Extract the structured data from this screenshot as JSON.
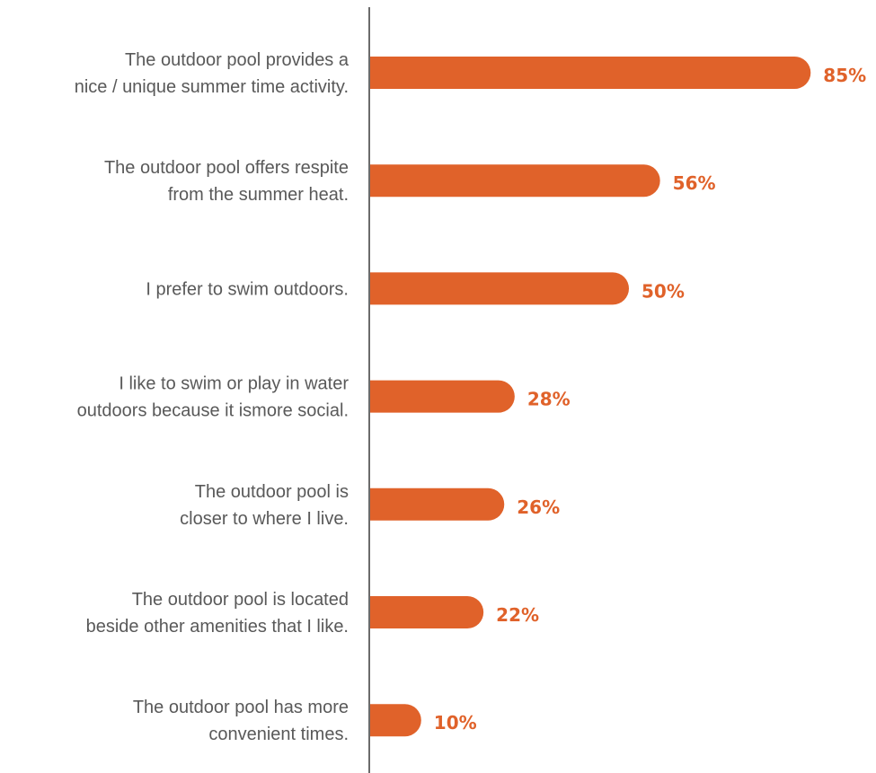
{
  "chart_data": {
    "type": "bar",
    "orientation": "horizontal",
    "categories": [
      [
        "The outdoor pool provides a",
        "nice / unique summer time activity."
      ],
      [
        "The outdoor pool offers respite",
        "from the summer heat."
      ],
      [
        "I prefer to swim outdoors."
      ],
      [
        "I like to swim or play in water",
        "outdoors because it ismore social."
      ],
      [
        "The outdoor pool is",
        "closer to where I live."
      ],
      [
        "The outdoor pool is located",
        "beside other amenities that I like."
      ],
      [
        "The outdoor pool has more",
        "convenient times."
      ]
    ],
    "values": [
      85,
      56,
      50,
      28,
      26,
      22,
      10
    ],
    "value_labels": [
      "85%",
      "56%",
      "50%",
      "28%",
      "26%",
      "22%",
      "10%"
    ],
    "unit": "%",
    "xlim": [
      0,
      100
    ],
    "grid": false,
    "legend": "none",
    "bar_color": "#E0622A",
    "label_color": "#E0622A",
    "text_color": "#595959",
    "axis_color": "#6b6b6b"
  }
}
